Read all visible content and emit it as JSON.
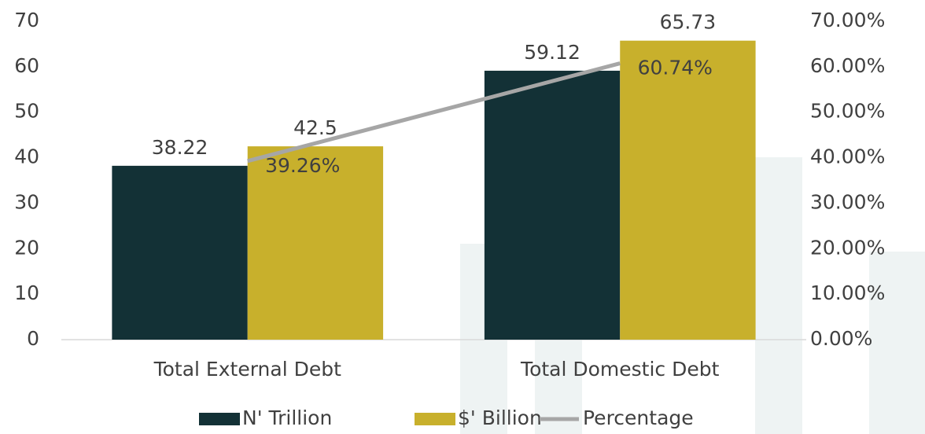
{
  "chart_data": {
    "type": "bar",
    "categories": [
      "Total External Debt",
      "Total Domestic Debt"
    ],
    "series": [
      {
        "name": "N' Trillion",
        "color": "#133136",
        "values": [
          38.22,
          59.12
        ]
      },
      {
        "name": "$' Billion",
        "color": "#c8b02c",
        "values": [
          42.5,
          65.73
        ]
      },
      {
        "name": "Percentage",
        "color": "#a6a6a6",
        "type": "line",
        "axis": "y2",
        "values": [
          39.26,
          60.74
        ],
        "value_labels": [
          "39.26%",
          "60.74%"
        ]
      }
    ],
    "ylim": [
      0,
      70
    ],
    "yticks": [
      0,
      10,
      20,
      30,
      40,
      50,
      60,
      70
    ],
    "y2lim": [
      0,
      70
    ],
    "y2ticks": [
      {
        "value": 0,
        "label": "0.00%"
      },
      {
        "value": 10,
        "label": "10.00%"
      },
      {
        "value": 20,
        "label": "20.00%"
      },
      {
        "value": 30,
        "label": "30.00%"
      },
      {
        "value": 40,
        "label": "40.00%"
      },
      {
        "value": 50,
        "label": "50.00%"
      },
      {
        "value": 60,
        "label": "60.00%"
      },
      {
        "value": 70,
        "label": "70.00%"
      }
    ],
    "legend": "bottom"
  }
}
